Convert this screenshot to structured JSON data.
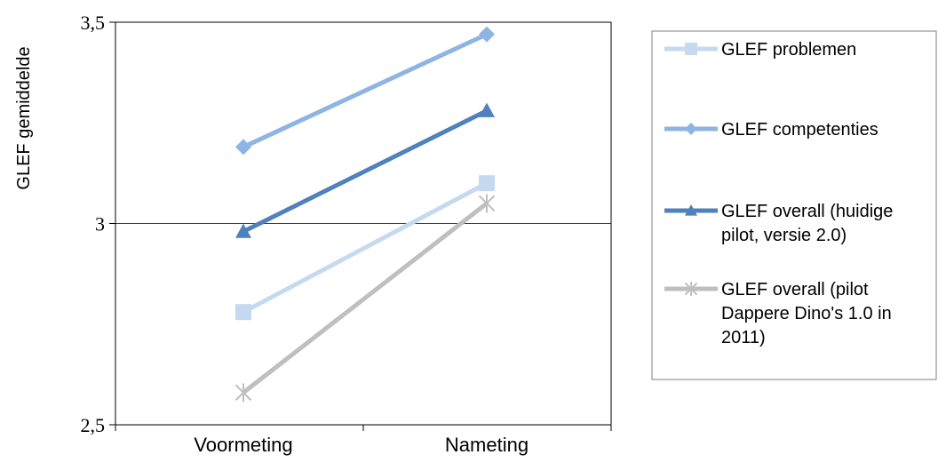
{
  "chart_data": {
    "type": "line",
    "ylabel": "GLEF gemiddelde",
    "xlabel": "",
    "categories": [
      "Voormeting",
      "Nameting"
    ],
    "ylim": [
      2.5,
      3.5
    ],
    "yticks": [
      2.5,
      3,
      3.5
    ],
    "ytick_labels": [
      "2,5",
      "3",
      "3,5"
    ],
    "grid": "horizontal line at 3",
    "legend_position": "right",
    "series": [
      {
        "name": "GLEF problemen",
        "values": [
          2.78,
          3.1
        ],
        "color": "#c5d9f1",
        "marker": "square"
      },
      {
        "name": "GLEF competenties",
        "values": [
          3.19,
          3.47
        ],
        "color": "#8eb4e3",
        "marker": "diamond"
      },
      {
        "name": "GLEF overall (huidige pilot, versie 2.0)",
        "legend_lines": [
          "GLEF overall (huidige",
          "pilot, versie 2.0)"
        ],
        "values": [
          2.98,
          3.28
        ],
        "color": "#4f81bd",
        "marker": "triangle"
      },
      {
        "name": "GLEF overall (pilot Dappere Dino's 1.0 in 2011)",
        "legend_lines": [
          "GLEF overall (pilot",
          "Dappere Dino's 1.0 in",
          "2011)"
        ],
        "values": [
          2.58,
          3.05
        ],
        "color": "#bfbfbf",
        "marker": "star"
      }
    ]
  }
}
